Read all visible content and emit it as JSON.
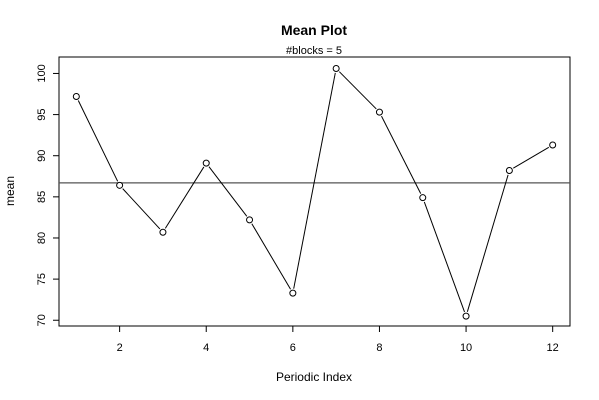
{
  "chart_data": {
    "type": "line",
    "title": "Mean Plot",
    "subtitle": "#blocks =  5",
    "xlabel": "Periodic Index",
    "ylabel": "mean",
    "xlim": [
      0.6,
      12.4
    ],
    "ylim": [
      69.3,
      102.0
    ],
    "x_ticks": [
      2,
      4,
      6,
      8,
      10,
      12
    ],
    "y_ticks": [
      70,
      75,
      80,
      85,
      90,
      95,
      100
    ],
    "series": [
      {
        "x": [
          1,
          2,
          3,
          4,
          5,
          6,
          7,
          8,
          9,
          10,
          11,
          12
        ],
        "values": [
          97.2,
          86.4,
          80.7,
          89.1,
          82.2,
          73.3,
          100.6,
          95.3,
          84.9,
          70.5,
          88.2,
          91.3
        ]
      }
    ],
    "reference_line": {
      "y": 86.7
    },
    "marker": "open-circle",
    "grid": false,
    "legend": "none",
    "colors": {
      "line": "#000000",
      "reference": "#555555",
      "axes": "#000000"
    }
  }
}
